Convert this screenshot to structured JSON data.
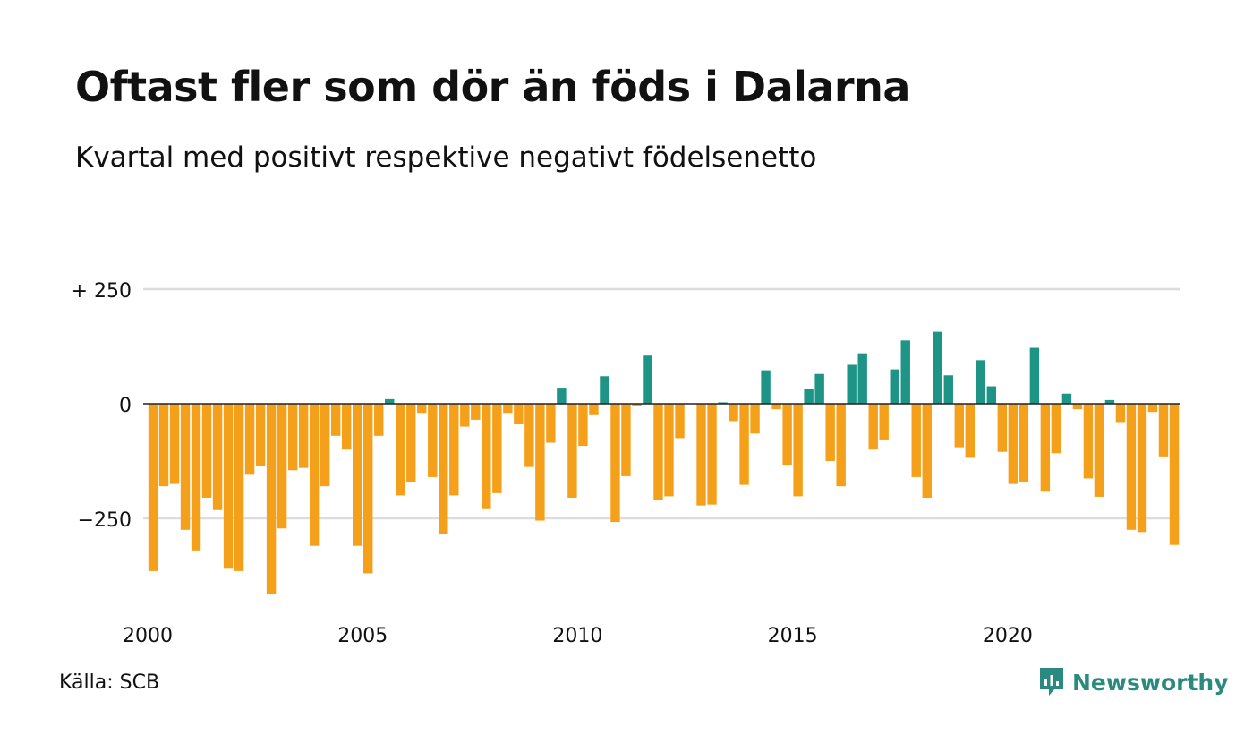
{
  "title": "Oftast fler som dör än föds i Dalarna",
  "subtitle": "Kvartal med positivt respektive negativt födelsenetto",
  "source": "Källa: SCB",
  "logo_text": "Newsworthy",
  "colors": {
    "positive": "#1d9485",
    "negative": "#f5a01a",
    "grid": "#dddddd",
    "axis": "#222222",
    "logo": "#2a8a80"
  },
  "chart_data": {
    "type": "bar",
    "x_start": "2000 Q1",
    "xlabel": "",
    "ylabel": "",
    "ylim": [
      -430,
      300
    ],
    "yticks": [
      {
        "value": 250,
        "label": "+ 250"
      },
      {
        "value": 0,
        "label": "0"
      },
      {
        "value": -250,
        "label": "−250"
      }
    ],
    "xticks": [
      "2000",
      "2005",
      "2010",
      "2015",
      "2020"
    ],
    "values": [
      -365,
      -180,
      -175,
      -275,
      -320,
      -205,
      -232,
      -360,
      -365,
      -155,
      -135,
      -415,
      -272,
      -145,
      -140,
      -310,
      -180,
      -70,
      -100,
      -310,
      -370,
      -70,
      10,
      -200,
      -170,
      -20,
      -160,
      -285,
      -200,
      -50,
      -35,
      -230,
      -195,
      -20,
      -45,
      -138,
      -255,
      -85,
      35,
      -205,
      -92,
      -25,
      60,
      -258,
      -158,
      -5,
      105,
      -210,
      -202,
      -75,
      0,
      -222,
      -220,
      3,
      -38,
      -177,
      -65,
      73,
      -12,
      -133,
      -202,
      33,
      65,
      -125,
      -180,
      85,
      110,
      -100,
      -78,
      75,
      138,
      -160,
      -205,
      157,
      62,
      -95,
      -118,
      95,
      38,
      -105,
      -175,
      -170,
      122,
      -192,
      -108,
      22,
      -12,
      -163,
      -203,
      8,
      -40,
      -275,
      -280,
      -18,
      -115,
      -308
    ]
  }
}
